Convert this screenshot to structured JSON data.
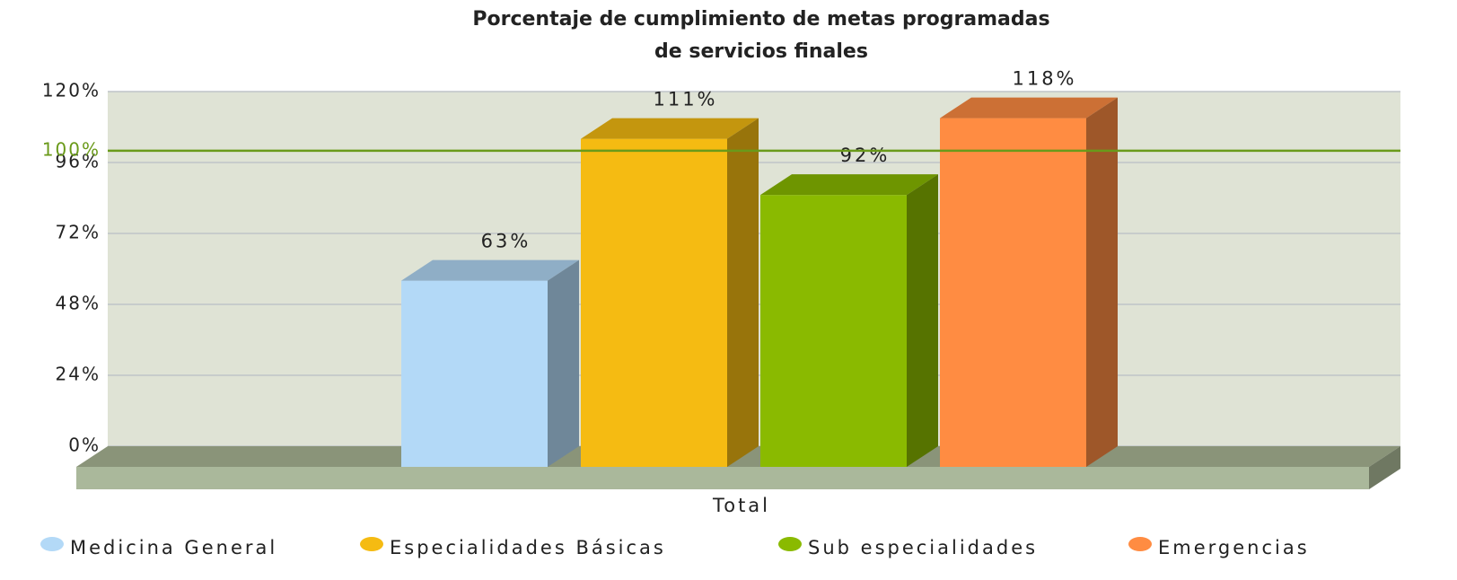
{
  "chart_data": {
    "type": "bar3d",
    "title": [
      "Porcentaje de cumplimiento de metas programadas",
      "de servicios finales"
    ],
    "categories": [
      "Total"
    ],
    "series": [
      {
        "name": "Medicina General",
        "color": "#b3d9f7",
        "values": [
          63
        ],
        "value_labels": [
          "63%"
        ]
      },
      {
        "name": "Especialidades Básicas",
        "color": "#f5bb12",
        "values": [
          111
        ],
        "value_labels": [
          "111%"
        ]
      },
      {
        "name": "Sub especialidades",
        "color": "#8aba00",
        "values": [
          92
        ],
        "value_labels": [
          "92%"
        ]
      },
      {
        "name": "Emergencias",
        "color": "#ff8c42",
        "values": [
          118
        ],
        "value_labels": [
          "118%"
        ]
      }
    ],
    "ylim": [
      0,
      120
    ],
    "yticks": [
      {
        "value": 0,
        "label": "0%"
      },
      {
        "value": 24,
        "label": "24%"
      },
      {
        "value": 48,
        "label": "48%"
      },
      {
        "value": 72,
        "label": "72%"
      },
      {
        "value": 96,
        "label": "96%"
      },
      {
        "value": 120,
        "label": "120%"
      }
    ],
    "grid": true,
    "target_line": {
      "value": 100,
      "label": "100%",
      "color": "#6a9a1a"
    },
    "legend": "bottom"
  }
}
